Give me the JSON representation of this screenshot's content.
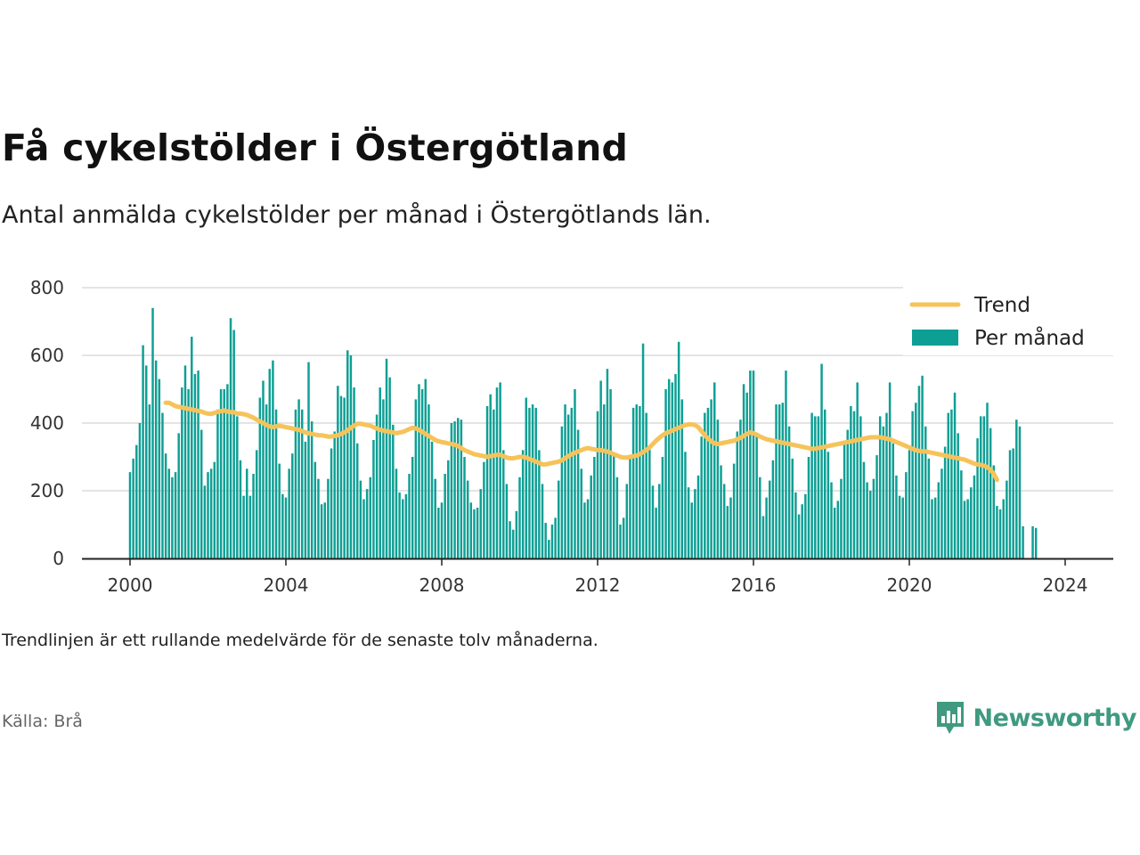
{
  "header": {
    "title": "Få cykelstölder i Östergötland",
    "subtitle": "Antal anmälda cykelstölder per månad i Östergötlands län."
  },
  "footer": {
    "note": "Trendlinjen är ett rullande medelvärde för de senaste tolv månaderna.",
    "source": "Källa: Brå",
    "brand": "Newsworthy",
    "brand_icon": "newsworthy-logo-icon"
  },
  "colors": {
    "bars": "#0e9f94",
    "trend": "#f6c35b",
    "grid": "#dcdcdc",
    "axis": "#222222",
    "brand": "#3f9a7f"
  },
  "chart_data": {
    "type": "bar",
    "title": "Få cykelstölder i Östergötland",
    "subtitle": "Antal anmälda cykelstölder per månad i Östergötlands län.",
    "xlabel": "",
    "ylabel": "",
    "ylim": [
      0,
      800
    ],
    "y_ticks": [
      0,
      200,
      400,
      600,
      800
    ],
    "x_ticks": [
      "2000",
      "2004",
      "2008",
      "2012",
      "2016",
      "2020",
      "2024"
    ],
    "grid": true,
    "legend_position": "top-right",
    "start_month": "2000-01",
    "series": [
      {
        "name": "Per månad",
        "type": "bar",
        "values": [
          255,
          295,
          335,
          400,
          630,
          570,
          455,
          740,
          585,
          530,
          430,
          310,
          265,
          240,
          255,
          370,
          505,
          570,
          500,
          655,
          545,
          555,
          380,
          215,
          255,
          265,
          285,
          440,
          500,
          500,
          515,
          710,
          675,
          420,
          290,
          185,
          265,
          185,
          250,
          320,
          475,
          525,
          455,
          560,
          585,
          440,
          280,
          190,
          180,
          265,
          310,
          440,
          470,
          440,
          345,
          580,
          405,
          285,
          235,
          160,
          165,
          235,
          325,
          375,
          510,
          480,
          475,
          615,
          600,
          505,
          340,
          230,
          175,
          205,
          240,
          350,
          425,
          505,
          470,
          590,
          535,
          395,
          265,
          195,
          175,
          190,
          250,
          300,
          470,
          515,
          500,
          530,
          455,
          345,
          235,
          150,
          165,
          250,
          290,
          400,
          405,
          415,
          410,
          300,
          230,
          165,
          145,
          150,
          205,
          285,
          450,
          485,
          440,
          505,
          520,
          320,
          220,
          110,
          85,
          140,
          240,
          320,
          475,
          445,
          455,
          445,
          320,
          220,
          105,
          55,
          100,
          120,
          230,
          390,
          455,
          425,
          445,
          500,
          380,
          265,
          165,
          175,
          245,
          300,
          435,
          525,
          455,
          560,
          500,
          310,
          240,
          100,
          120,
          220,
          300,
          445,
          455,
          450,
          635,
          430,
          330,
          215,
          150,
          220,
          300,
          500,
          530,
          520,
          545,
          640,
          470,
          315,
          210,
          165,
          205,
          245,
          360,
          430,
          445,
          470,
          520,
          410,
          275,
          220,
          155,
          180,
          280,
          375,
          410,
          515,
          490,
          555,
          555,
          370,
          240,
          125,
          180,
          230,
          290,
          455,
          455,
          460,
          555,
          390,
          295,
          195,
          130,
          160,
          190,
          300,
          430,
          420,
          420,
          575,
          440,
          315,
          225,
          150,
          170,
          235,
          345,
          380,
          450,
          435,
          520,
          420,
          285,
          225,
          200,
          235,
          305,
          420,
          390,
          430,
          520,
          340,
          245,
          185,
          180,
          255,
          320,
          435,
          460,
          510,
          540,
          390,
          295,
          175,
          180,
          225,
          265,
          330,
          430,
          440,
          490,
          370,
          260,
          170,
          175,
          210,
          245,
          355,
          420,
          420,
          460,
          385,
          275,
          155,
          145,
          175,
          230,
          320,
          325,
          410,
          390,
          95,
          0,
          0,
          95,
          90
        ]
      },
      {
        "name": "Trend",
        "type": "line",
        "start_month": "2000-12",
        "values": [
          460,
          460,
          455,
          450,
          448,
          446,
          444,
          442,
          440,
          438,
          436,
          434,
          430,
          428,
          427,
          430,
          433,
          435,
          437,
          434,
          432,
          432,
          428,
          428,
          426,
          424,
          420,
          416,
          410,
          405,
          400,
          395,
          390,
          388,
          390,
          392,
          390,
          388,
          386,
          384,
          382,
          380,
          376,
          372,
          370,
          368,
          366,
          364,
          364,
          362,
          360,
          360,
          362,
          364,
          368,
          372,
          378,
          386,
          392,
          398,
          398,
          396,
          394,
          392,
          388,
          384,
          380,
          378,
          376,
          374,
          372,
          370,
          372,
          374,
          378,
          382,
          386,
          384,
          380,
          374,
          368,
          362,
          356,
          350,
          346,
          344,
          342,
          340,
          338,
          336,
          332,
          326,
          320,
          316,
          312,
          308,
          306,
          304,
          302,
          300,
          302,
          304,
          306,
          306,
          302,
          298,
          296,
          296,
          298,
          300,
          300,
          298,
          294,
          290,
          286,
          282,
          278,
          278,
          280,
          282,
          284,
          286,
          290,
          296,
          302,
          308,
          312,
          316,
          320,
          324,
          326,
          324,
          322,
          320,
          320,
          318,
          316,
          312,
          308,
          304,
          300,
          298,
          298,
          300,
          302,
          304,
          308,
          314,
          320,
          328,
          338,
          348,
          356,
          364,
          370,
          374,
          378,
          382,
          386,
          390,
          394,
          396,
          396,
          394,
          388,
          376,
          364,
          354,
          346,
          340,
          338,
          340,
          342,
          344,
          346,
          348,
          352,
          356,
          362,
          368,
          372,
          370,
          366,
          360,
          356,
          352,
          350,
          348,
          346,
          344,
          342,
          340,
          338,
          336,
          334,
          332,
          330,
          328,
          326,
          324,
          324,
          326,
          328,
          330,
          332,
          334,
          336,
          338,
          340,
          342,
          344,
          346,
          348,
          350,
          352,
          354,
          356,
          358,
          358,
          358,
          358,
          356,
          354,
          352,
          348,
          344,
          340,
          336,
          332,
          328,
          324,
          320,
          318,
          316,
          316,
          314,
          312,
          310,
          308,
          306,
          304,
          302,
          300,
          298,
          296,
          294,
          292,
          288,
          284,
          280,
          278,
          276,
          274,
          270,
          262,
          250,
          232
        ]
      }
    ]
  }
}
